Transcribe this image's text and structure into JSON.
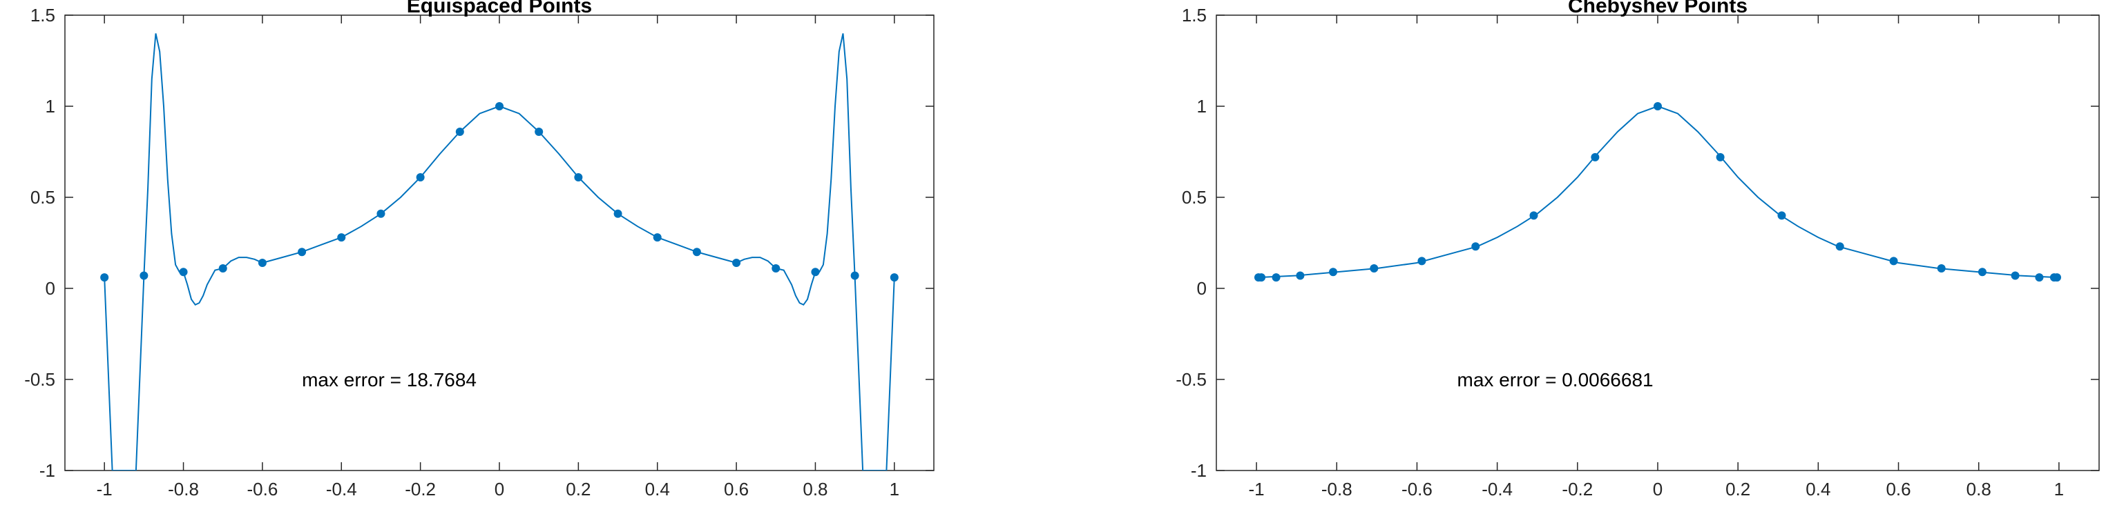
{
  "accent_color": "#0072BD",
  "chart_data": [
    {
      "type": "line",
      "title": "Equispaced Points",
      "xlim": [
        -1.1,
        1.1
      ],
      "ylim": [
        -1,
        1.5
      ],
      "xticks": [
        -1,
        -0.8,
        -0.6,
        -0.4,
        -0.2,
        0,
        0.2,
        0.4,
        0.6,
        0.8,
        1
      ],
      "xtick_labels": [
        "-1",
        "-0.8",
        "-0.6",
        "-0.4",
        "-0.2",
        "0",
        "0.2",
        "0.4",
        "0.6",
        "0.8",
        "1"
      ],
      "yticks": [
        -1,
        -0.5,
        0,
        0.5,
        1,
        1.5
      ],
      "ytick_labels": [
        "-1",
        "-0.5",
        "0",
        "0.5",
        "1",
        "1.5"
      ],
      "annotation": "max error = 18.7684",
      "series": [
        {
          "kind": "interpolant",
          "x": [
            -1.0,
            -0.98,
            -0.96,
            -0.94,
            -0.92,
            -0.9,
            -0.89,
            -0.88,
            -0.87,
            -0.86,
            -0.85,
            -0.84,
            -0.83,
            -0.82,
            -0.81,
            -0.8,
            -0.79,
            -0.78,
            -0.77,
            -0.76,
            -0.75,
            -0.74,
            -0.72,
            -0.7,
            -0.68,
            -0.66,
            -0.64,
            -0.62,
            -0.6,
            -0.55,
            -0.5,
            -0.45,
            -0.4,
            -0.35,
            -0.3,
            -0.25,
            -0.2,
            -0.15,
            -0.1,
            -0.05,
            0.0,
            0.05,
            0.1,
            0.15,
            0.2,
            0.25,
            0.3,
            0.35,
            0.4,
            0.45,
            0.5,
            0.55,
            0.6,
            0.62,
            0.64,
            0.66,
            0.68,
            0.7,
            0.72,
            0.74,
            0.75,
            0.76,
            0.77,
            0.78,
            0.79,
            0.8,
            0.81,
            0.82,
            0.83,
            0.84,
            0.85,
            0.86,
            0.87,
            0.88,
            0.89,
            0.9,
            0.92,
            0.94,
            0.96,
            0.98,
            1.0
          ],
          "y": [
            0.06,
            -1.0,
            -1.0,
            -1.0,
            -1.0,
            0.07,
            0.55,
            1.15,
            1.4,
            1.3,
            1.0,
            0.6,
            0.3,
            0.13,
            0.09,
            0.09,
            0.02,
            -0.06,
            -0.09,
            -0.08,
            -0.04,
            0.02,
            0.1,
            0.11,
            0.15,
            0.17,
            0.17,
            0.16,
            0.14,
            0.17,
            0.2,
            0.24,
            0.28,
            0.34,
            0.41,
            0.5,
            0.61,
            0.74,
            0.86,
            0.96,
            1.0,
            0.96,
            0.86,
            0.74,
            0.61,
            0.5,
            0.41,
            0.34,
            0.28,
            0.24,
            0.2,
            0.17,
            0.14,
            0.16,
            0.17,
            0.17,
            0.15,
            0.11,
            0.1,
            0.02,
            -0.04,
            -0.08,
            -0.09,
            -0.06,
            0.02,
            0.09,
            0.09,
            0.13,
            0.3,
            0.6,
            1.0,
            1.3,
            1.4,
            1.15,
            0.55,
            0.07,
            -1.0,
            -1.0,
            -1.0,
            -1.0,
            0.06
          ]
        },
        {
          "kind": "nodes",
          "x": [
            -1.0,
            -0.9,
            -0.8,
            -0.7,
            -0.6,
            -0.5,
            -0.4,
            -0.3,
            -0.2,
            -0.1,
            0.0,
            0.1,
            0.2,
            0.3,
            0.4,
            0.5,
            0.6,
            0.7,
            0.8,
            0.9,
            1.0
          ],
          "y": [
            0.06,
            0.07,
            0.09,
            0.11,
            0.14,
            0.2,
            0.28,
            0.41,
            0.61,
            0.86,
            1.0,
            0.86,
            0.61,
            0.41,
            0.28,
            0.2,
            0.14,
            0.11,
            0.09,
            0.07,
            0.06
          ]
        }
      ]
    },
    {
      "type": "line",
      "title": "Chebyshev Points",
      "xlim": [
        -1.1,
        1.1
      ],
      "ylim": [
        -1,
        1.5
      ],
      "xticks": [
        -1,
        -0.8,
        -0.6,
        -0.4,
        -0.2,
        0,
        0.2,
        0.4,
        0.6,
        0.8,
        1
      ],
      "xtick_labels": [
        "-1",
        "-0.8",
        "-0.6",
        "-0.4",
        "-0.2",
        "0",
        "0.2",
        "0.4",
        "0.6",
        "0.8",
        "1"
      ],
      "yticks": [
        -1,
        -0.5,
        0,
        0.5,
        1,
        1.5
      ],
      "ytick_labels": [
        "-1",
        "-0.5",
        "0",
        "0.5",
        "1",
        "1.5"
      ],
      "annotation": "max error = 0.0066681",
      "series": [
        {
          "kind": "interpolant",
          "x": [
            -1.0,
            -0.9,
            -0.8,
            -0.7,
            -0.6,
            -0.5,
            -0.45,
            -0.4,
            -0.35,
            -0.3,
            -0.25,
            -0.2,
            -0.15,
            -0.1,
            -0.05,
            0.0,
            0.05,
            0.1,
            0.15,
            0.2,
            0.25,
            0.3,
            0.35,
            0.4,
            0.45,
            0.5,
            0.6,
            0.7,
            0.8,
            0.9,
            1.0
          ],
          "y": [
            0.06,
            0.07,
            0.09,
            0.11,
            0.14,
            0.2,
            0.23,
            0.28,
            0.34,
            0.41,
            0.5,
            0.61,
            0.74,
            0.86,
            0.96,
            1.0,
            0.96,
            0.86,
            0.74,
            0.61,
            0.5,
            0.41,
            0.34,
            0.28,
            0.23,
            0.2,
            0.14,
            0.11,
            0.09,
            0.07,
            0.06
          ]
        },
        {
          "kind": "nodes",
          "x": [
            -0.995,
            -0.988,
            -0.951,
            -0.891,
            -0.809,
            -0.707,
            -0.588,
            -0.454,
            -0.309,
            -0.156,
            0.0,
            0.156,
            0.309,
            0.454,
            0.588,
            0.707,
            0.809,
            0.891,
            0.951,
            0.988,
            0.995
          ],
          "y": [
            0.06,
            0.06,
            0.06,
            0.07,
            0.09,
            0.11,
            0.15,
            0.23,
            0.4,
            0.72,
            1.0,
            0.72,
            0.4,
            0.23,
            0.15,
            0.11,
            0.09,
            0.07,
            0.06,
            0.06,
            0.06
          ]
        }
      ]
    }
  ]
}
